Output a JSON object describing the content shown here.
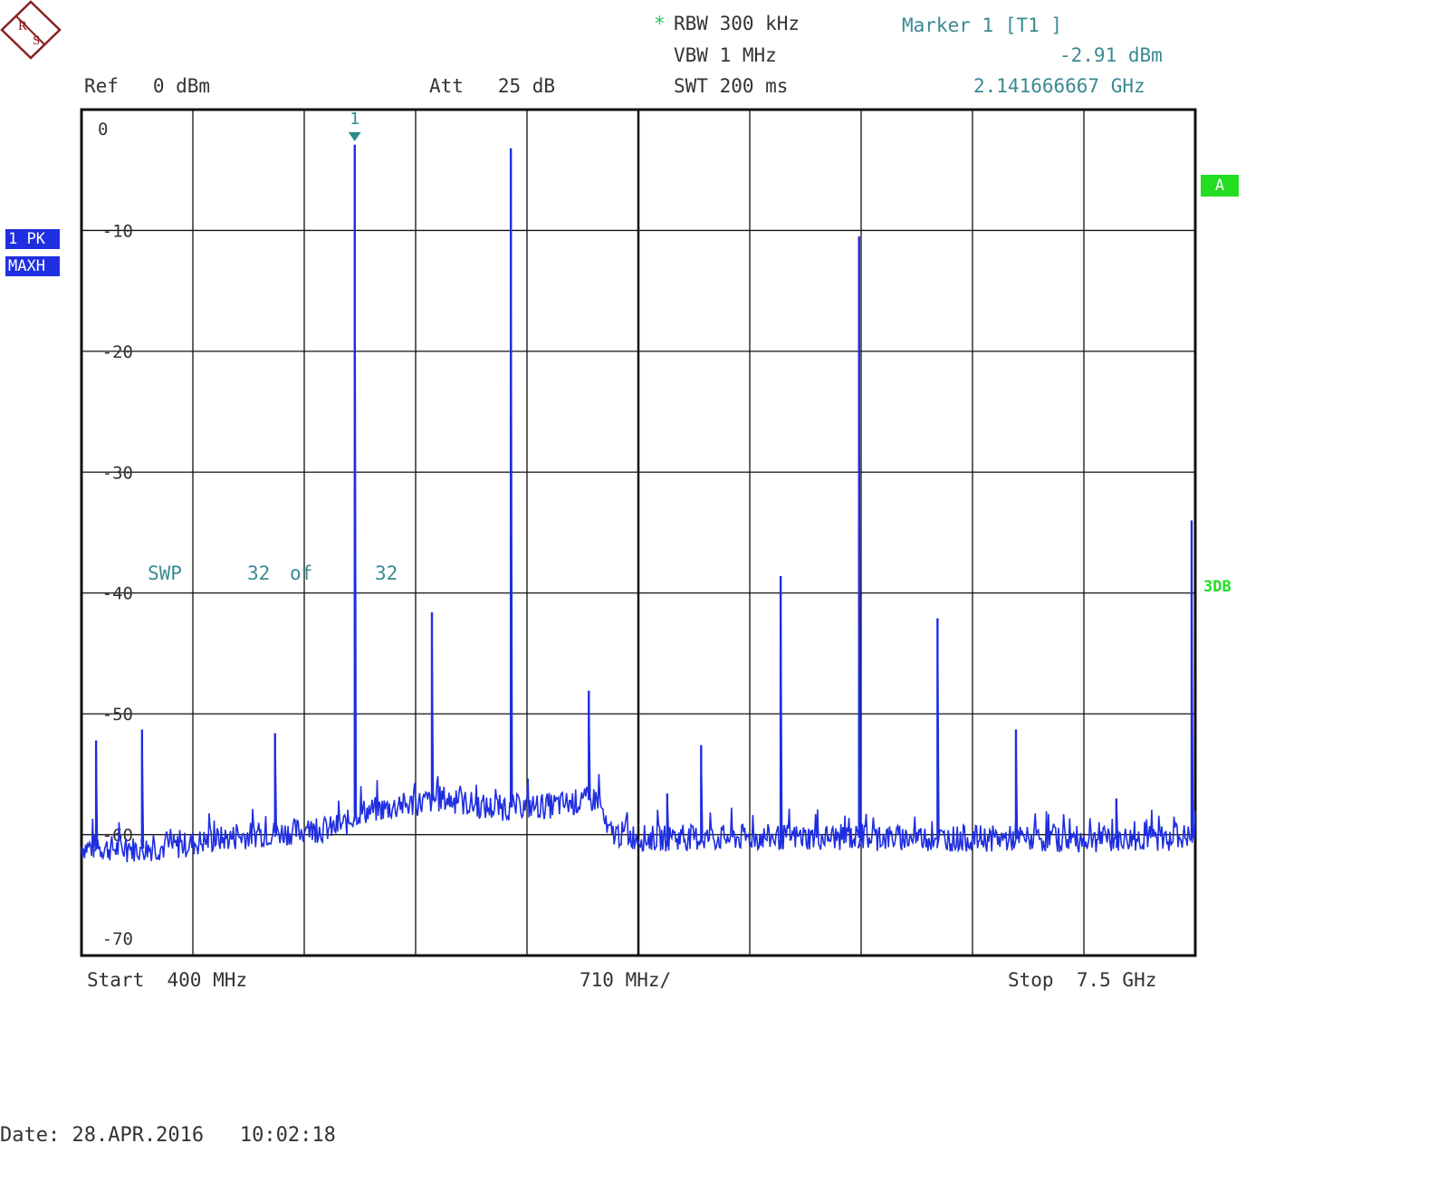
{
  "logo": {
    "letters": "RS"
  },
  "header": {
    "rbw_star": "*",
    "rbw": "RBW 300 kHz",
    "vbw": "VBW 1 MHz",
    "swt": "SWT 200 ms",
    "ref": "Ref   0 dBm",
    "att": "Att   25 dB",
    "marker_title": "Marker 1 [T1 ]",
    "marker_level": "-2.91 dBm",
    "marker_freq": "2.141666667 GHz"
  },
  "side": {
    "trace_label": "1 PK",
    "detector_label": "MAXH",
    "a_label": "A",
    "db_label": "3DB"
  },
  "sweep": {
    "label": "SWP",
    "count": "32",
    "of": "of",
    "total": "32"
  },
  "footer": {
    "start": "Start  400 MHz",
    "span": "710 MHz/",
    "stop": "Stop  7.5 GHz",
    "date": "Date: 28.APR.2016   10:02:18"
  },
  "colors": {
    "trace": "#1f2ee0",
    "marker": "#2e8b8b",
    "grid": "#111111",
    "accent_green": "#22dd22"
  },
  "chart_data": {
    "type": "line",
    "xlabel": "",
    "ylabel": "",
    "x_unit": "MHz",
    "xlim": [
      400,
      7500
    ],
    "ylim": [
      -70,
      0
    ],
    "grid": true,
    "y_ticks": [
      "0",
      "-10",
      "-20",
      "-30",
      "-40",
      "-50",
      "-60",
      "-70"
    ],
    "marker": {
      "label": "1",
      "x": 2141.67,
      "y": -2.91
    },
    "noise_floor": [
      [
        400,
        -61.0
      ],
      [
        700,
        -61.2
      ],
      [
        1000,
        -61.0
      ],
      [
        1200,
        -60.5
      ],
      [
        1500,
        -60.0
      ],
      [
        1700,
        -59.8
      ],
      [
        2000,
        -59.5
      ],
      [
        2100,
        -59.0
      ],
      [
        2150,
        -58.2
      ],
      [
        2500,
        -57.5
      ],
      [
        2700,
        -57.0
      ],
      [
        3000,
        -57.8
      ],
      [
        3400,
        -57.6
      ],
      [
        3700,
        -57.0
      ],
      [
        3750,
        -59.8
      ],
      [
        4000,
        -60.3
      ],
      [
        5000,
        -60.2
      ],
      [
        6000,
        -60.3
      ],
      [
        7000,
        -60.4
      ],
      [
        7500,
        -60.2
      ]
    ],
    "peaks": [
      {
        "x": 493,
        "y": -52.2
      },
      {
        "x": 786,
        "y": -51.3
      },
      {
        "x": 1634,
        "y": -51.6
      },
      {
        "x": 2142,
        "y": -2.91
      },
      {
        "x": 2634,
        "y": -41.6
      },
      {
        "x": 3137,
        "y": -3.2
      },
      {
        "x": 3634,
        "y": -48.1
      },
      {
        "x": 4134,
        "y": -56.6
      },
      {
        "x": 4350,
        "y": -52.6
      },
      {
        "x": 4857,
        "y": -38.6
      },
      {
        "x": 5357,
        "y": -10.5
      },
      {
        "x": 5857,
        "y": -42.1
      },
      {
        "x": 6357,
        "y": -51.3
      },
      {
        "x": 6997,
        "y": -57.0
      },
      {
        "x": 7477,
        "y": -34.0
      }
    ]
  }
}
